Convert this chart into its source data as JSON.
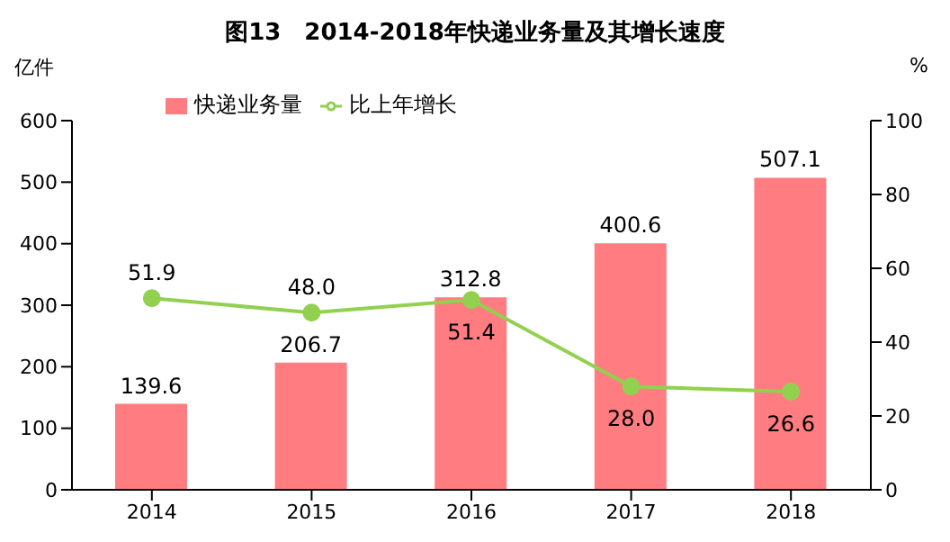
{
  "chart_data": {
    "type": "bar",
    "title": "图13　2014-2018年快递业务量及其增长速度",
    "ylabel": "亿件",
    "y2label": "%",
    "categories": [
      "2014",
      "2015",
      "2016",
      "2017",
      "2018"
    ],
    "series": [
      {
        "name": "快递业务量",
        "color": "#ff7c80",
        "values": [
          139.6,
          206.7,
          312.8,
          400.6,
          507.1
        ],
        "value_labels": [
          "139.6",
          "206.7",
          "312.8",
          "400.6",
          "507.1"
        ]
      },
      {
        "name": "比上年增长",
        "type": "line",
        "axis": "y2",
        "color": "#92d050",
        "values": [
          51.9,
          48.0,
          51.4,
          28.0,
          26.6
        ],
        "value_labels": [
          "51.9",
          "48.0",
          "51.4",
          "28.0",
          "26.6"
        ]
      }
    ],
    "ylim": [
      0,
      600
    ],
    "yticks": [
      0,
      100,
      200,
      300,
      400,
      500,
      600
    ],
    "y2lim": [
      0,
      100
    ],
    "y2ticks": [
      0,
      20,
      40,
      60,
      80,
      100
    ],
    "legend": "top",
    "marker": "circle",
    "grid": false
  }
}
